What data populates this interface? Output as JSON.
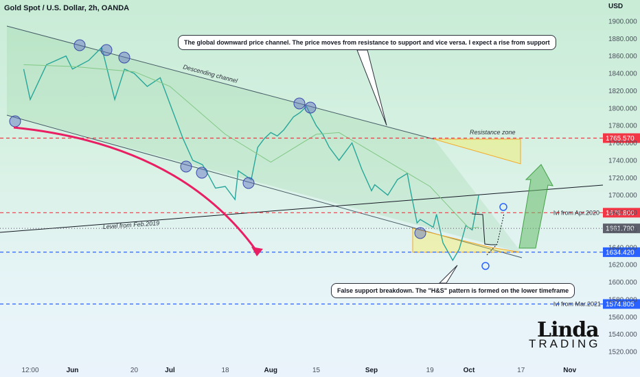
{
  "header": {
    "title": "Gold Spot / U.S. Dollar, 2h, OANDA",
    "currency": "USD"
  },
  "chart_data": {
    "type": "line",
    "title": "Gold Spot / U.S. Dollar, 2h, OANDA",
    "ylabel": "USD",
    "ylim": [
      1510,
      1910
    ],
    "y_ticks": [
      1520,
      1540,
      1560,
      1580,
      1600,
      1620,
      1640,
      1660,
      1680,
      1700,
      1720,
      1740,
      1760,
      1780,
      1800,
      1820,
      1840,
      1860,
      1880,
      1900
    ],
    "y_tick_labels": [
      "1520.000",
      "1540.000",
      "1560.000",
      "1580.000",
      "1600.000",
      "1620.000",
      "1640.000",
      "1660.000",
      "1680.000",
      "1700.000",
      "1720.000",
      "1740.000",
      "1760.000",
      "1780.000",
      "1800.000",
      "1820.000",
      "1840.000",
      "1860.000",
      "1880.000",
      "1900.000"
    ],
    "x_tick_labels": [
      "12:00",
      "Jun",
      "20",
      "Jul",
      "18",
      "Aug",
      "15",
      "Sep",
      "19",
      "Oct",
      "17",
      "Nov"
    ],
    "x_tick_dates": [
      "2022-05-19",
      "2022-06-01",
      "2022-06-20",
      "2022-07-01",
      "2022-07-18",
      "2022-08-01",
      "2022-08-15",
      "2022-09-01",
      "2022-09-19",
      "2022-10-01",
      "2022-10-17",
      "2022-11-01"
    ],
    "series": [
      {
        "name": "",
        "color": "#26a69a",
        "points": [
          [
            "2022-05-17",
            1845
          ],
          [
            "2022-05-19",
            1810
          ],
          [
            "2022-05-24",
            1850
          ],
          [
            "2022-05-30",
            1860
          ],
          [
            "2022-06-01",
            1845
          ],
          [
            "2022-06-06",
            1855
          ],
          [
            "2022-06-10",
            1870
          ],
          [
            "2022-06-14",
            1810
          ],
          [
            "2022-06-17",
            1845
          ],
          [
            "2022-06-20",
            1840
          ],
          [
            "2022-06-24",
            1825
          ],
          [
            "2022-06-28",
            1835
          ],
          [
            "2022-07-01",
            1805
          ],
          [
            "2022-07-05",
            1765
          ],
          [
            "2022-07-08",
            1740
          ],
          [
            "2022-07-11",
            1735
          ],
          [
            "2022-07-13",
            1722
          ],
          [
            "2022-07-15",
            1708
          ],
          [
            "2022-07-18",
            1710
          ],
          [
            "2022-07-21",
            1695
          ],
          [
            "2022-07-22",
            1728
          ],
          [
            "2022-07-26",
            1718
          ],
          [
            "2022-07-28",
            1755
          ],
          [
            "2022-07-30",
            1765
          ],
          [
            "2022-08-01",
            1772
          ],
          [
            "2022-08-03",
            1768
          ],
          [
            "2022-08-05",
            1775
          ],
          [
            "2022-08-08",
            1790
          ],
          [
            "2022-08-10",
            1795
          ],
          [
            "2022-08-12",
            1802
          ],
          [
            "2022-08-15",
            1780
          ],
          [
            "2022-08-17",
            1770
          ],
          [
            "2022-08-19",
            1755
          ],
          [
            "2022-08-22",
            1740
          ],
          [
            "2022-08-24",
            1750
          ],
          [
            "2022-08-26",
            1760
          ],
          [
            "2022-08-29",
            1730
          ],
          [
            "2022-09-01",
            1705
          ],
          [
            "2022-09-02",
            1712
          ],
          [
            "2022-09-06",
            1700
          ],
          [
            "2022-09-09",
            1718
          ],
          [
            "2022-09-12",
            1725
          ],
          [
            "2022-09-13",
            1705
          ],
          [
            "2022-09-15",
            1668
          ],
          [
            "2022-09-16",
            1672
          ],
          [
            "2022-09-20",
            1663
          ],
          [
            "2022-09-21",
            1678
          ],
          [
            "2022-09-23",
            1645
          ],
          [
            "2022-09-26",
            1625
          ],
          [
            "2022-09-28",
            1638
          ],
          [
            "2022-09-30",
            1665
          ],
          [
            "2022-10-02",
            1660
          ],
          [
            "2022-10-04",
            1700
          ]
        ]
      },
      {
        "name": "",
        "color": "#81c784",
        "points": [
          [
            "2022-05-17",
            1850
          ],
          [
            "2022-06-01",
            1848
          ],
          [
            "2022-06-20",
            1842
          ],
          [
            "2022-07-01",
            1825
          ],
          [
            "2022-07-18",
            1770
          ],
          [
            "2022-08-01",
            1738
          ],
          [
            "2022-08-15",
            1770
          ],
          [
            "2022-08-22",
            1772
          ],
          [
            "2022-09-01",
            1750
          ],
          [
            "2022-09-19",
            1710
          ],
          [
            "2022-10-01",
            1662
          ],
          [
            "2022-10-04",
            1663
          ]
        ]
      }
    ],
    "levels": [
      {
        "value": 1765.57,
        "label": "1765.570",
        "color": "#f23645"
      },
      {
        "value": 1679.8,
        "label": "1679.800",
        "name": "lvl from Apr.2020",
        "color": "#f23645"
      },
      {
        "value": 1661.79,
        "label": "1661.790",
        "color": "#5d606b"
      },
      {
        "value": 1634.42,
        "label": "1634.420",
        "color": "#2962ff"
      },
      {
        "value": 1574.805,
        "label": "1574.805",
        "name": "lvl from Mar.2021",
        "color": "#2962ff"
      }
    ],
    "annotations": [
      "Descending channel",
      "Resistance zone",
      "Level from Feb.2019"
    ]
  },
  "callouts": {
    "top": "The global downward price channel. The price moves from resistance to support and vice versa. I expect a rise from support",
    "bottom": "False support breakdown. The \"H&S\" pattern is formed on the lower timeframe"
  },
  "logo": {
    "main": "Linda",
    "sub": "TRADING"
  }
}
